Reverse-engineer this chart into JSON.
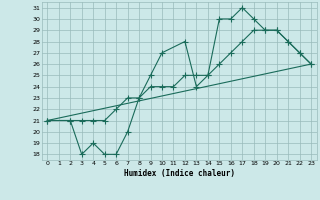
{
  "xlabel": "Humidex (Indice chaleur)",
  "bg_color": "#cce8e8",
  "grid_color": "#99bbbb",
  "line_color": "#1a6b5a",
  "xlim": [
    -0.5,
    23.5
  ],
  "ylim": [
    17.5,
    31.5
  ],
  "xticks": [
    0,
    1,
    2,
    3,
    4,
    5,
    6,
    7,
    8,
    9,
    10,
    11,
    12,
    13,
    14,
    15,
    16,
    17,
    18,
    19,
    20,
    21,
    22,
    23
  ],
  "yticks": [
    18,
    19,
    20,
    21,
    22,
    23,
    24,
    25,
    26,
    27,
    28,
    29,
    30,
    31
  ],
  "line1_x": [
    0,
    2,
    3,
    4,
    5,
    6,
    7,
    8,
    9,
    10,
    12,
    13,
    14,
    15,
    16,
    17,
    18,
    19,
    20,
    21,
    22,
    23
  ],
  "line1_y": [
    21,
    21,
    18,
    19,
    18,
    18,
    20,
    23,
    25,
    27,
    28,
    24,
    25,
    30,
    30,
    31,
    30,
    29,
    29,
    28,
    27,
    26
  ],
  "line2_x": [
    0,
    23
  ],
  "line2_y": [
    21,
    26
  ],
  "line3_x": [
    0,
    2,
    3,
    4,
    5,
    6,
    7,
    8,
    9,
    10,
    11,
    12,
    13,
    14,
    15,
    16,
    17,
    18,
    19,
    20,
    21,
    22,
    23
  ],
  "line3_y": [
    21,
    21,
    21,
    21,
    21,
    22,
    23,
    23,
    24,
    24,
    24,
    25,
    25,
    25,
    26,
    27,
    28,
    29,
    29,
    29,
    28,
    27,
    26
  ]
}
